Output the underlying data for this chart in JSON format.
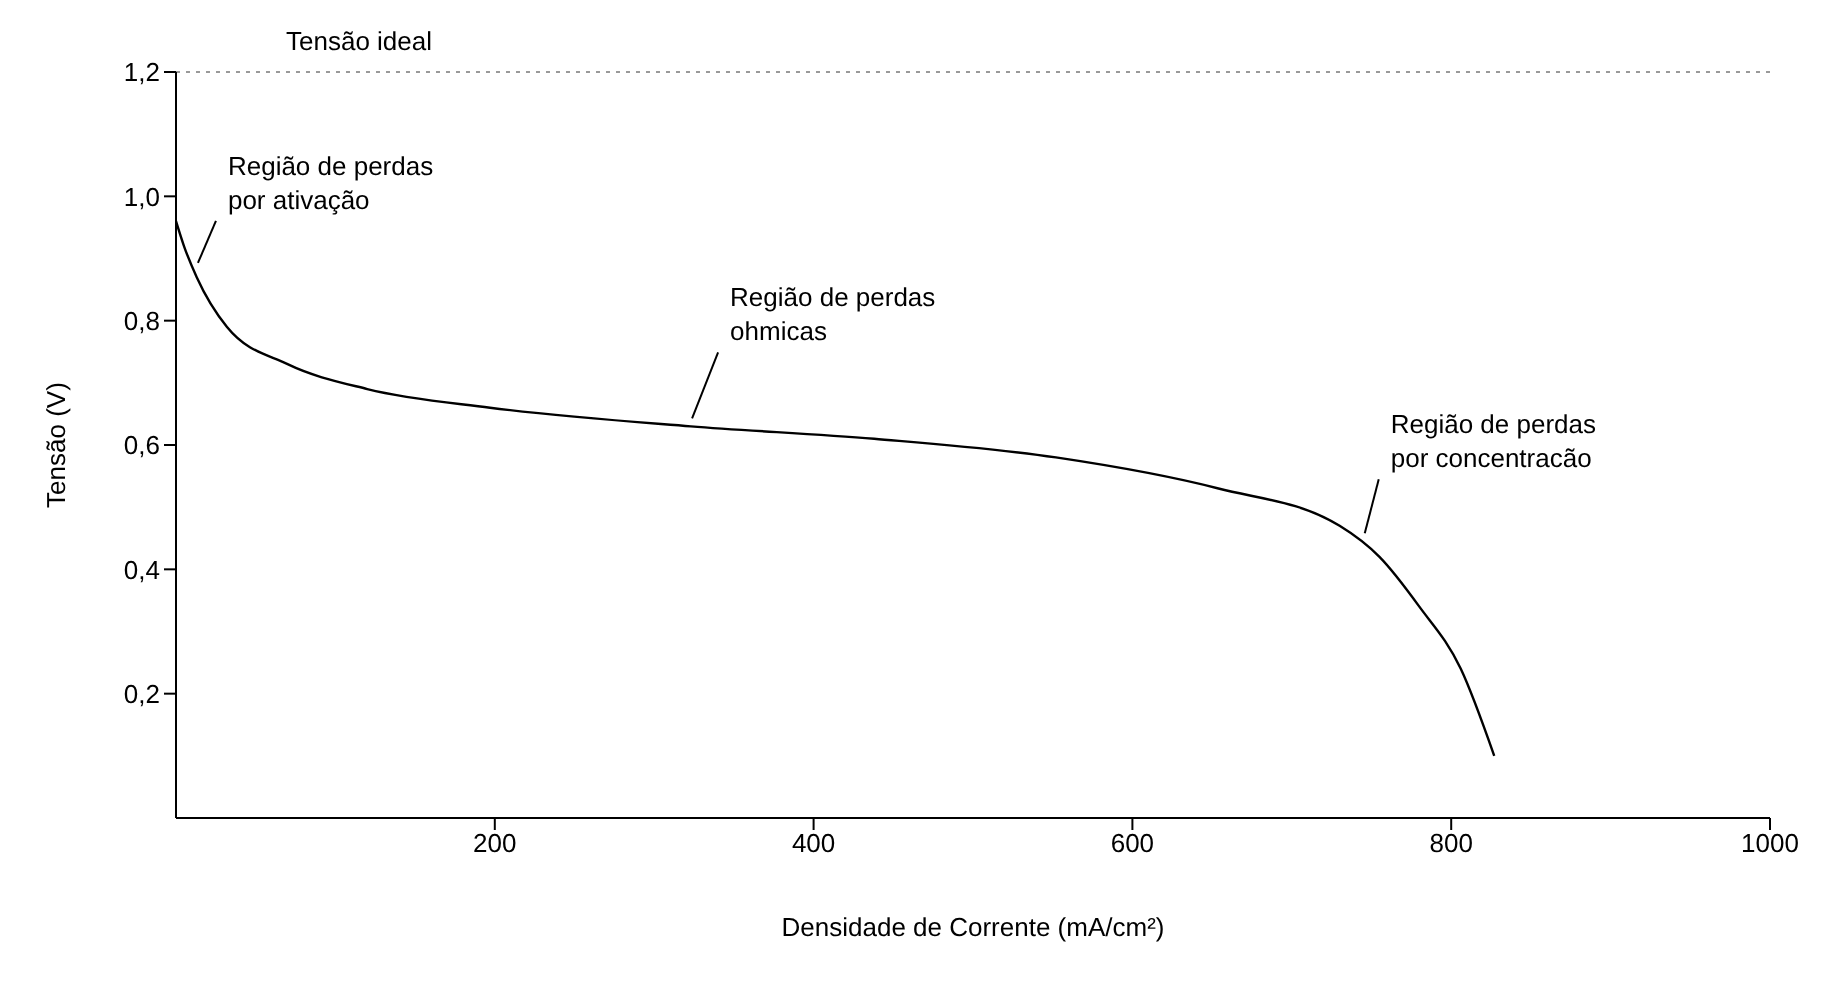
{
  "chart_data": {
    "type": "line",
    "xlabel": "Densidade de Corrente (mA/cm²)",
    "ylabel": "Tensão (V)",
    "xlim": [
      0,
      1000
    ],
    "xticks": [
      200,
      400,
      600,
      800,
      1000
    ],
    "ylim": [
      0,
      1.2
    ],
    "yticks": [
      {
        "value": 0.2,
        "label": "0,2"
      },
      {
        "value": 0.4,
        "label": "0,4"
      },
      {
        "value": 0.6,
        "label": "0,6"
      },
      {
        "value": 0.8,
        "label": "0,8"
      },
      {
        "value": 1.0,
        "label": "1,0"
      },
      {
        "value": 1.2,
        "label": "1,2"
      }
    ],
    "grid": false,
    "marker": "none",
    "line_style": "solid",
    "series": [
      {
        "color": "#000000",
        "x": [
          0,
          5,
          13,
          32,
          70,
          120,
          197,
          323,
          438,
          552,
          654,
          730,
          755,
          780,
          806,
          827
        ],
        "values": [
          0.96,
          0.92,
          0.87,
          0.79,
          0.73,
          0.69,
          0.66,
          0.63,
          0.61,
          0.58,
          0.53,
          0.47,
          0.42,
          0.34,
          0.24,
          0.1
        ]
      }
    ],
    "ref_lines": [
      {
        "axis": "y",
        "value": 1.2,
        "label": "Tensão ideal",
        "line_style": "dotted",
        "color": "#999999"
      }
    ],
    "annotations": [
      {
        "text": "Região de perdas\npor ativação",
        "x": 10,
        "y": 0.88
      },
      {
        "text": "Região de perdas\nohmicas",
        "x": 320,
        "y": 0.63
      },
      {
        "text": "Região de perdas\npor concentracão",
        "x": 742,
        "y": 0.445
      }
    ]
  }
}
